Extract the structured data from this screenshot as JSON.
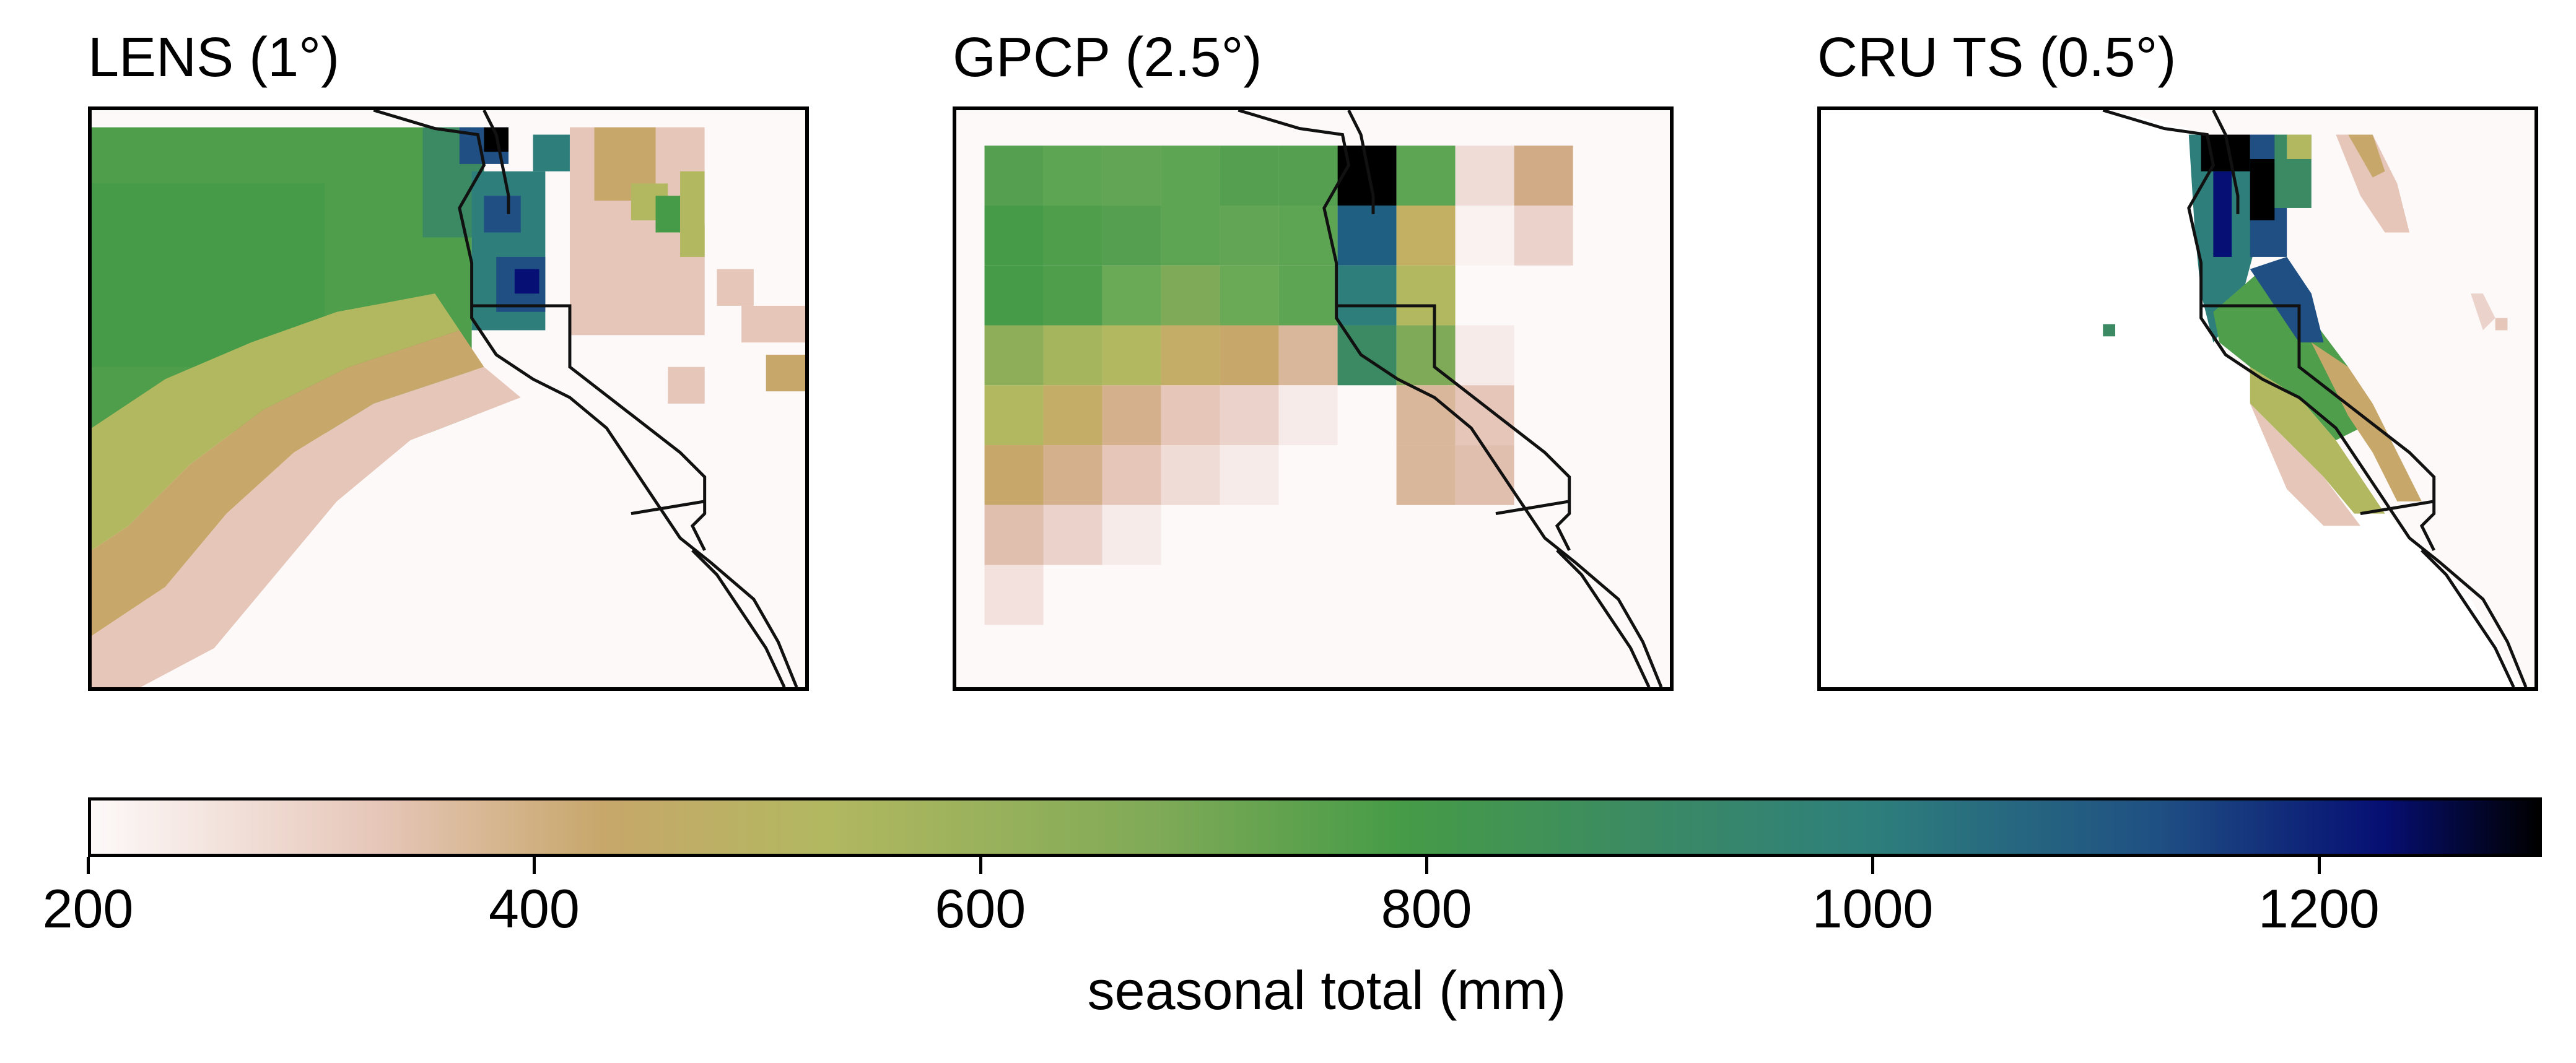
{
  "panels": [
    {
      "id": "lens",
      "title": "LENS (1°)"
    },
    {
      "id": "gpcp",
      "title": "GPCP (2.5°)"
    },
    {
      "id": "cru",
      "title": "CRU TS (0.5°)"
    }
  ],
  "colorbar": {
    "label": "seasonal total (mm)",
    "min": 200,
    "max": 1300,
    "ticks": [
      200,
      400,
      600,
      800,
      1000,
      1200
    ],
    "tick_labels": [
      "200",
      "400",
      "600",
      "800",
      "1000",
      "1200"
    ],
    "colormap": "gist_earth_r",
    "colormap_stops": [
      {
        "value": 200,
        "color": "#fdf9f9"
      },
      {
        "value": 330,
        "color": "#e6c6b8"
      },
      {
        "value": 430,
        "color": "#c7a76a"
      },
      {
        "value": 530,
        "color": "#b2b860"
      },
      {
        "value": 680,
        "color": "#7faa57"
      },
      {
        "value": 790,
        "color": "#459b47"
      },
      {
        "value": 900,
        "color": "#3b8a64"
      },
      {
        "value": 1000,
        "color": "#2e7f7c"
      },
      {
        "value": 1130,
        "color": "#1f4f83"
      },
      {
        "value": 1230,
        "color": "#060f73"
      },
      {
        "value": 1300,
        "color": "#000000"
      }
    ]
  }
}
